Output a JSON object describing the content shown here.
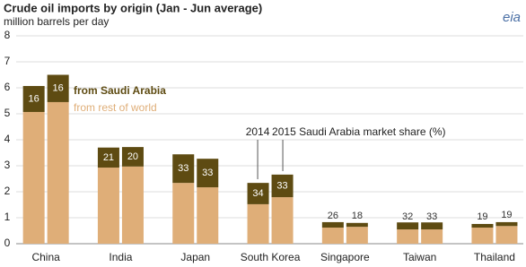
{
  "chart_data": {
    "type": "grouped-stacked-bar",
    "title": "Crude oil imports by origin (Jan - Jun average)",
    "subtitle": "million barrels per day",
    "logo": "eia",
    "categories": [
      "China",
      "India",
      "Japan",
      "South Korea",
      "Singapore",
      "Taiwan",
      "Thailand"
    ],
    "series": [
      {
        "name": "from rest of world",
        "color": "#dfae78",
        "values": [
          [
            5.07,
            5.45
          ],
          [
            2.93,
            2.97
          ],
          [
            2.34,
            2.17
          ],
          [
            1.52,
            1.79
          ],
          [
            0.62,
            0.65
          ],
          [
            0.55,
            0.55
          ],
          [
            0.62,
            0.68
          ]
        ]
      },
      {
        "name": "from Saudi Arabia",
        "color": "#5e4b12",
        "values": [
          [
            1.0,
            1.05
          ],
          [
            0.77,
            0.75
          ],
          [
            1.1,
            1.1
          ],
          [
            0.82,
            0.87
          ],
          [
            0.21,
            0.15
          ],
          [
            0.27,
            0.27
          ],
          [
            0.14,
            0.15
          ]
        ]
      }
    ],
    "market_share": [
      [
        16,
        16
      ],
      [
        21,
        20
      ],
      [
        33,
        33
      ],
      [
        34,
        33
      ],
      [
        26,
        18
      ],
      [
        32,
        33
      ],
      [
        19,
        19
      ]
    ],
    "annotations": [
      "2014",
      "2015 Saudi Arabia market share (%)"
    ],
    "ylim": [
      0,
      8
    ],
    "yticks": [
      0,
      1,
      2,
      3,
      4,
      5,
      6,
      7,
      8
    ],
    "grid": true
  }
}
